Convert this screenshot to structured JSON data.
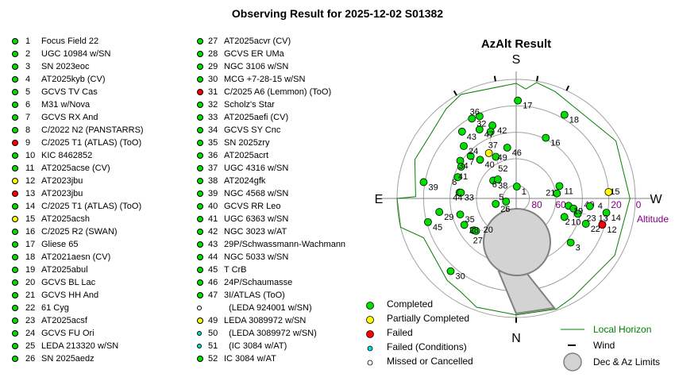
{
  "title": "Observing Result for 2025-12-02 S01382",
  "status_colors": {
    "completed": "#00e000",
    "partial": "#ffff00",
    "failed": "#ff0000",
    "failed_conditions": "#00e0e0",
    "missed": "#ffffff"
  },
  "targets": [
    {
      "num": "1",
      "name": "Focus Field 22",
      "status": "completed"
    },
    {
      "num": "2",
      "name": "UGC 10984 w/SN",
      "status": "completed"
    },
    {
      "num": "3",
      "name": "SN 2023eoc",
      "status": "completed"
    },
    {
      "num": "4",
      "name": "AT2025kyb (CV)",
      "status": "completed"
    },
    {
      "num": "5",
      "name": "GCVS TV Cas",
      "status": "completed"
    },
    {
      "num": "6",
      "name": "M31 w/Nova",
      "status": "completed"
    },
    {
      "num": "7",
      "name": "GCVS RX And",
      "status": "completed"
    },
    {
      "num": "8",
      "name": "C/2022 N2 (PANSTARRS)",
      "status": "completed"
    },
    {
      "num": "9",
      "name": "C/2025 T1 (ATLAS) (ToO)",
      "status": "failed"
    },
    {
      "num": "10",
      "name": "KIC 8462852",
      "status": "completed"
    },
    {
      "num": "11",
      "name": "AT2025acse (CV)",
      "status": "completed"
    },
    {
      "num": "12",
      "name": "AT2023jbu",
      "status": "partial"
    },
    {
      "num": "13",
      "name": "AT2023jbu",
      "status": "failed"
    },
    {
      "num": "14",
      "name": "C/2025 T1 (ATLAS) (ToO)",
      "status": "completed"
    },
    {
      "num": "15",
      "name": "AT2025acsh",
      "status": "partial"
    },
    {
      "num": "16",
      "name": "C/2025 R2 (SWAN)",
      "status": "completed"
    },
    {
      "num": "17",
      "name": "Gliese 65",
      "status": "completed"
    },
    {
      "num": "18",
      "name": "AT2021aesn (CV)",
      "status": "completed"
    },
    {
      "num": "19",
      "name": "AT2025abul",
      "status": "completed"
    },
    {
      "num": "20",
      "name": "GCVS BL Lac",
      "status": "completed"
    },
    {
      "num": "21",
      "name": "GCVS HH And",
      "status": "completed"
    },
    {
      "num": "22",
      "name": "61 Cyg",
      "status": "completed"
    },
    {
      "num": "23",
      "name": "AT2025acsf",
      "status": "completed"
    },
    {
      "num": "24",
      "name": "GCVS FU Ori",
      "status": "completed"
    },
    {
      "num": "25",
      "name": "LEDA 213320 w/SN",
      "status": "completed"
    },
    {
      "num": "26",
      "name": "SN 2025aedz",
      "status": "completed"
    },
    {
      "num": "27",
      "name": "AT2025acvr (CV)",
      "status": "completed"
    },
    {
      "num": "28",
      "name": "GCVS ER UMa",
      "status": "completed"
    },
    {
      "num": "29",
      "name": "NGC 3106 w/SN",
      "status": "completed"
    },
    {
      "num": "30",
      "name": "MCG +7-28-15 w/SN",
      "status": "completed"
    },
    {
      "num": "31",
      "name": "C/2025 A6 (Lemmon) (ToO)",
      "status": "failed"
    },
    {
      "num": "32",
      "name": "Scholz's Star",
      "status": "completed"
    },
    {
      "num": "33",
      "name": "AT2025aefi (CV)",
      "status": "completed"
    },
    {
      "num": "34",
      "name": "GCVS SY Cnc",
      "status": "completed"
    },
    {
      "num": "35",
      "name": "SN 2025zry",
      "status": "completed"
    },
    {
      "num": "36",
      "name": "AT2025acrt",
      "status": "completed"
    },
    {
      "num": "37",
      "name": "UGC 4316 w/SN",
      "status": "completed"
    },
    {
      "num": "38",
      "name": "AT2024gfk",
      "status": "completed"
    },
    {
      "num": "39",
      "name": "NGC 4568 w/SN",
      "status": "completed"
    },
    {
      "num": "40",
      "name": "GCVS RR Leo",
      "status": "completed"
    },
    {
      "num": "41",
      "name": "UGC 6363 w/SN",
      "status": "completed"
    },
    {
      "num": "42",
      "name": "NGC 3023 w/AT",
      "status": "completed"
    },
    {
      "num": "43",
      "name": "29P/Schwassmann-Wachmann",
      "status": "completed"
    },
    {
      "num": "44",
      "name": "NGC 5033 w/SN",
      "status": "completed"
    },
    {
      "num": "45",
      "name": "T CrB",
      "status": "completed"
    },
    {
      "num": "46",
      "name": "24P/Schaumasse",
      "status": "completed"
    },
    {
      "num": "47",
      "name": "3I/ATLAS (ToO)",
      "status": "completed"
    },
    {
      "num": "",
      "name": "  (LEDA 924001 w/SN)",
      "status": "missed"
    },
    {
      "num": "49",
      "name": "LEDA 3089972 w/SN",
      "status": "partial"
    },
    {
      "num": "50",
      "name": "  (LEDA 3089972 w/SN)",
      "status": "failed_conditions"
    },
    {
      "num": "51",
      "name": "  (IC 3084 w/AT)",
      "status": "failed_conditions"
    },
    {
      "num": "52",
      "name": "IC 3084 w/AT",
      "status": "completed"
    }
  ],
  "chart_data": {
    "type": "scatter",
    "projection": "polar-azalt",
    "title": "AzAlt Result",
    "directions": {
      "top": "S",
      "bottom": "N",
      "left": "E",
      "right": "W"
    },
    "altitude_ticks": [
      "80",
      "60",
      "40",
      "20",
      "0"
    ],
    "altitude_label": "Altitude",
    "altitude_range": [
      0,
      90
    ],
    "grid": true,
    "points": [
      {
        "label": "1",
        "az": 183,
        "alt": 81,
        "status": "completed"
      },
      {
        "label": "17",
        "az": 181,
        "alt": 16,
        "status": "completed"
      },
      {
        "label": "18",
        "az": 210,
        "alt": 17,
        "status": "completed"
      },
      {
        "label": "16",
        "az": 206,
        "alt": 39,
        "status": "completed"
      },
      {
        "label": "46",
        "az": 170,
        "alt": 51,
        "status": "completed"
      },
      {
        "label": "32",
        "az": 151,
        "alt": 21,
        "status": "completed"
      },
      {
        "label": "36",
        "az": 156,
        "alt": 22,
        "status": "completed"
      },
      {
        "label": "47",
        "az": 152,
        "alt": 31,
        "status": "completed"
      },
      {
        "label": "42",
        "az": 162,
        "alt": 32,
        "status": "completed"
      },
      {
        "label": "37",
        "az": 159,
        "alt": 36,
        "status": "completed"
      },
      {
        "label": "43",
        "az": 141,
        "alt": 25,
        "status": "completed"
      },
      {
        "label": "24",
        "az": 135,
        "alt": 34,
        "status": "completed"
      },
      {
        "label": "7",
        "az": 133,
        "alt": 43,
        "status": "completed"
      },
      {
        "label": "40",
        "az": 137,
        "alt": 50,
        "status": "completed"
      },
      {
        "label": "49",
        "az": 149,
        "alt": 50,
        "status": "partial"
      },
      {
        "label": "52",
        "az": 154,
        "alt": 55,
        "status": "completed"
      },
      {
        "label": "34",
        "az": 124,
        "alt": 39,
        "status": "completed"
      },
      {
        "label": "41",
        "az": 120,
        "alt": 42,
        "status": "completed"
      },
      {
        "label": "8",
        "az": 110,
        "alt": 43,
        "status": "completed"
      },
      {
        "label": "39",
        "az": 100,
        "alt": 19,
        "status": "completed"
      },
      {
        "label": "38",
        "az": 128,
        "alt": 68,
        "status": "completed"
      },
      {
        "label": "6",
        "az": 136,
        "alt": 70,
        "status": "completed"
      },
      {
        "label": "33",
        "az": 96,
        "alt": 47,
        "status": "completed"
      },
      {
        "label": "44",
        "az": 96,
        "alt": 48,
        "status": "completed"
      },
      {
        "label": "26",
        "az": 75,
        "alt": 74,
        "status": "completed"
      },
      {
        "label": "5",
        "az": 73,
        "alt": 82,
        "status": "completed"
      },
      {
        "label": "29",
        "az": 80,
        "alt": 31,
        "status": "completed"
      },
      {
        "label": "35",
        "az": 74,
        "alt": 46,
        "status": "completed"
      },
      {
        "label": "28",
        "az": 63,
        "alt": 46,
        "status": "completed"
      },
      {
        "label": "20",
        "az": 53,
        "alt": 50,
        "status": "completed"
      },
      {
        "label": "27",
        "az": 51,
        "alt": 51,
        "status": "completed"
      },
      {
        "label": "45",
        "az": 75,
        "alt": 21,
        "status": "completed"
      },
      {
        "label": "30",
        "az": 42,
        "alt": 16,
        "status": "completed"
      },
      {
        "label": "11",
        "az": 254,
        "alt": 56,
        "status": "completed"
      },
      {
        "label": "21",
        "az": 263,
        "alt": 59,
        "status": "completed"
      },
      {
        "label": "19",
        "az": 278,
        "alt": 50,
        "status": "completed"
      },
      {
        "label": "10",
        "az": 280,
        "alt": 46,
        "status": "completed"
      },
      {
        "label": "23",
        "az": 284,
        "alt": 42,
        "status": "completed"
      },
      {
        "label": "4",
        "az": 276,
        "alt": 34,
        "status": "completed"
      },
      {
        "label": "14",
        "az": 279,
        "alt": 21,
        "status": "completed"
      },
      {
        "label": "2",
        "az": 291,
        "alt": 51,
        "status": "completed"
      },
      {
        "label": "22",
        "az": 290,
        "alt": 34,
        "status": "completed"
      },
      {
        "label": "3",
        "az": 309,
        "alt": 37,
        "status": "completed"
      },
      {
        "label": "15",
        "az": 266,
        "alt": 20,
        "status": "partial"
      },
      {
        "label": "12",
        "az": 287,
        "alt": 22,
        "status": "partial"
      },
      {
        "label": "13",
        "az": 287,
        "alt": 22,
        "status": "failed"
      }
    ],
    "local_horizon": [
      [
        0,
        2
      ],
      [
        20,
        2.5
      ],
      [
        31,
        8
      ],
      [
        40,
        9
      ],
      [
        67,
        14
      ],
      [
        76,
        0
      ],
      [
        90,
        0
      ],
      [
        91,
        14
      ],
      [
        111,
        8
      ],
      [
        128,
        9
      ],
      [
        142,
        4
      ],
      [
        152,
        1
      ],
      [
        180,
        3
      ],
      [
        185,
        7
      ],
      [
        190,
        1
      ],
      [
        200,
        4
      ],
      [
        240,
        3
      ],
      [
        270,
        4
      ],
      [
        300,
        4
      ],
      [
        330,
        4
      ],
      [
        340,
        1
      ],
      [
        360,
        2
      ]
    ],
    "wind_az": [
      0,
      150,
      170,
      190,
      205
    ],
    "limit_color": "#d3d3d3",
    "horizon_color": "#008000",
    "legend": [
      {
        "label": "Completed",
        "status": "completed"
      },
      {
        "label": "Partially Completed",
        "status": "partial"
      },
      {
        "label": "Failed",
        "status": "failed"
      },
      {
        "label": "Failed (Conditions)",
        "status": "failed_conditions"
      },
      {
        "label": "Missed or Cancelled",
        "status": "missed"
      }
    ],
    "legend_right": {
      "horizon": "Local Horizon",
      "wind": "Wind",
      "limits": "Dec & Az Limits"
    }
  }
}
